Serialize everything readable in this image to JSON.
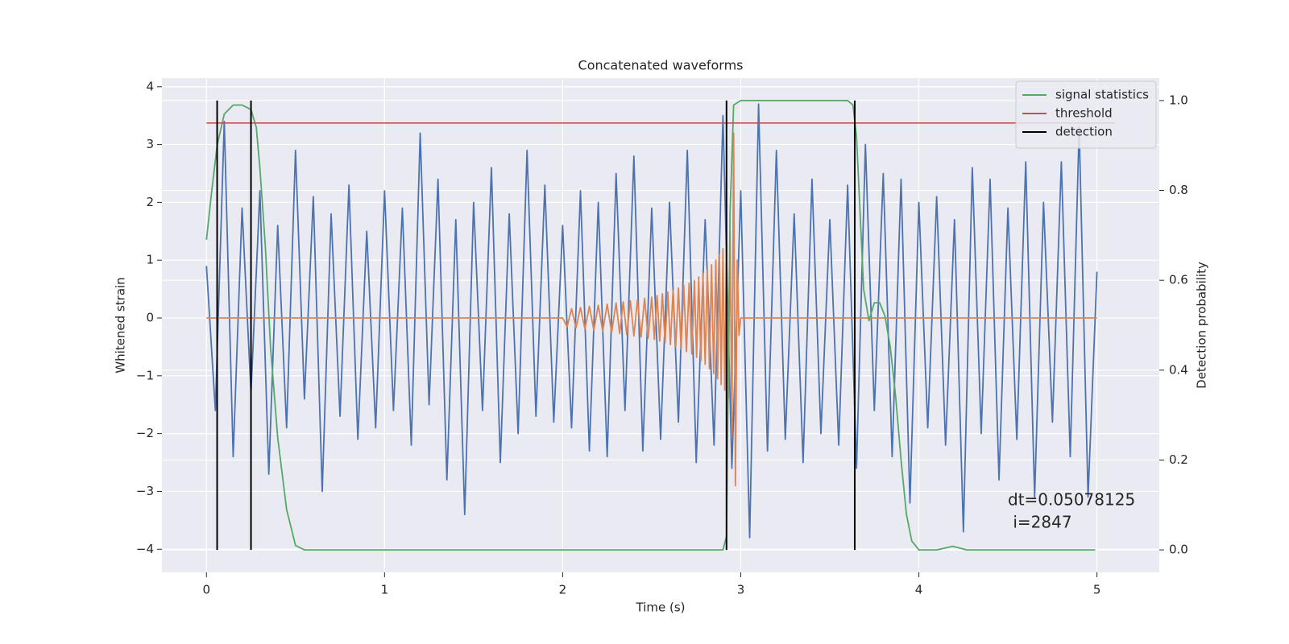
{
  "chart_data": {
    "type": "line",
    "title": "Concatenated waveforms",
    "xlabel": "Time (s)",
    "ylabel": "Whitened strain",
    "y2label": "Detection probability",
    "xlim": [
      -0.25,
      5.35
    ],
    "ylim": [
      -4.4,
      4.15
    ],
    "y2lim": [
      -0.05,
      1.05
    ],
    "xticks": [
      0,
      1,
      2,
      3,
      4,
      5
    ],
    "yticks": [
      {
        "value": -4,
        "label": "−4"
      },
      {
        "value": -3,
        "label": "−3"
      },
      {
        "value": -2,
        "label": "−2"
      },
      {
        "value": -1,
        "label": "−1"
      },
      0,
      1,
      2,
      3,
      4
    ],
    "y2ticks": [
      {
        "value": 0,
        "label": "0.0"
      },
      0.2,
      0.4,
      0.6,
      0.8,
      {
        "value": 1,
        "label": "1.0"
      }
    ],
    "grid": true,
    "legend": "upper right",
    "series": [
      {
        "color": "#4c72b0",
        "x": [
          0,
          0.05,
          0.1,
          0.15,
          0.2,
          0.25,
          0.3,
          0.35,
          0.4,
          0.45,
          0.5,
          0.55,
          0.6,
          0.65,
          0.7,
          0.75,
          0.8,
          0.85,
          0.9,
          0.95,
          1,
          1.05,
          1.1,
          1.15,
          1.2,
          1.25,
          1.3,
          1.35,
          1.4,
          1.45,
          1.5,
          1.55,
          1.6,
          1.65,
          1.7,
          1.75,
          1.8,
          1.85,
          1.9,
          1.95,
          2,
          2.05,
          2.1,
          2.15,
          2.2,
          2.25,
          2.3,
          2.35,
          2.4,
          2.45,
          2.5,
          2.55,
          2.6,
          2.65,
          2.7,
          2.75,
          2.8,
          2.85,
          2.9,
          2.95,
          3,
          3.05,
          3.1,
          3.15,
          3.2,
          3.25,
          3.3,
          3.35,
          3.4,
          3.45,
          3.5,
          3.55,
          3.6,
          3.65,
          3.7,
          3.75,
          3.8,
          3.85,
          3.9,
          3.95,
          4,
          4.05,
          4.1,
          4.15,
          4.2,
          4.25,
          4.3,
          4.35,
          4.4,
          4.45,
          4.5,
          4.55,
          4.6,
          4.65,
          4.7,
          4.75,
          4.8,
          4.85,
          4.9,
          4.95,
          5
        ],
        "values": [
          0.9,
          -1.6,
          3.4,
          -2.4,
          1.9,
          -1.3,
          2.2,
          -2.7,
          1.6,
          -1.9,
          2.9,
          -1.4,
          2.1,
          -3.0,
          1.8,
          -1.7,
          2.3,
          -2.1,
          1.5,
          -1.9,
          2.2,
          -1.6,
          1.9,
          -2.2,
          3.2,
          -1.5,
          2.4,
          -2.8,
          1.7,
          -3.4,
          2.0,
          -1.6,
          2.6,
          -2.5,
          1.8,
          -2.0,
          2.9,
          -1.7,
          2.3,
          -1.8,
          1.6,
          -1.9,
          2.2,
          -2.3,
          2.0,
          -2.4,
          2.5,
          -1.6,
          2.8,
          -2.3,
          1.9,
          -2.1,
          2.0,
          -1.8,
          2.9,
          -2.5,
          1.7,
          -2.2,
          3.5,
          -2.6,
          2.2,
          -3.8,
          3.7,
          -2.3,
          2.9,
          -2.1,
          1.8,
          -2.5,
          2.4,
          -2.0,
          1.7,
          -2.2,
          2.3,
          -2.6,
          3.0,
          -1.6,
          2.5,
          -2.4,
          2.4,
          -3.2,
          2.0,
          -1.9,
          2.1,
          -2.2,
          1.7,
          -3.7,
          2.6,
          -2.0,
          2.4,
          -2.8,
          1.9,
          -2.1,
          2.7,
          -3.1,
          2.0,
          -1.8,
          2.7,
          -2.4,
          3.3,
          -3.1,
          0.8
        ]
      },
      {
        "color": "#dd8452",
        "x": [
          0,
          2.0,
          2.025,
          2.05,
          2.075,
          2.1,
          2.125,
          2.15,
          2.175,
          2.2,
          2.225,
          2.25,
          2.275,
          2.3,
          2.32,
          2.34,
          2.36,
          2.38,
          2.4,
          2.42,
          2.44,
          2.46,
          2.48,
          2.5,
          2.515,
          2.53,
          2.545,
          2.56,
          2.575,
          2.59,
          2.605,
          2.62,
          2.635,
          2.65,
          2.665,
          2.68,
          2.695,
          2.71,
          2.725,
          2.74,
          2.752,
          2.764,
          2.776,
          2.788,
          2.8,
          2.812,
          2.824,
          2.836,
          2.848,
          2.86,
          2.87,
          2.88,
          2.89,
          2.9,
          2.91,
          2.92,
          2.93,
          2.94,
          2.95,
          2.96,
          2.97,
          2.98,
          2.99,
          3.0,
          5
        ],
        "values": [
          0,
          0,
          -0.15,
          0.16,
          -0.17,
          0.18,
          -0.19,
          0.2,
          -0.21,
          0.22,
          -0.23,
          0.24,
          -0.25,
          0.26,
          -0.27,
          0.28,
          -0.29,
          0.3,
          -0.31,
          0.32,
          -0.33,
          0.34,
          -0.35,
          0.36,
          -0.37,
          0.39,
          -0.4,
          0.42,
          -0.43,
          0.45,
          -0.46,
          0.48,
          -0.5,
          0.52,
          -0.54,
          0.56,
          -0.58,
          0.6,
          -0.62,
          0.65,
          -0.68,
          0.71,
          -0.74,
          0.77,
          -0.8,
          0.84,
          -0.88,
          0.92,
          -0.96,
          1.0,
          -1.05,
          1.1,
          -1.15,
          1.2,
          -1.25,
          1.3,
          -1.4,
          1.5,
          -2.0,
          3.2,
          -2.9,
          1.0,
          -0.3,
          0,
          0
        ]
      },
      {
        "name": "signal statistics",
        "color": "#55a868",
        "axis": "y2",
        "x": [
          0,
          0.03,
          0.06,
          0.1,
          0.15,
          0.2,
          0.25,
          0.28,
          0.3,
          0.33,
          0.36,
          0.4,
          0.45,
          0.5,
          0.55,
          1,
          2,
          2.9,
          2.92,
          2.94,
          2.96,
          3.0,
          3.5,
          3.6,
          3.63,
          3.65,
          3.67,
          3.69,
          3.72,
          3.75,
          3.78,
          3.81,
          3.84,
          3.87,
          3.9,
          3.93,
          3.96,
          4.0,
          4.1,
          4.19,
          4.27,
          4.5,
          4.99
        ],
        "values": [
          0.69,
          0.8,
          0.9,
          0.97,
          0.99,
          0.99,
          0.98,
          0.94,
          0.85,
          0.68,
          0.45,
          0.25,
          0.09,
          0.01,
          0,
          0,
          0,
          0,
          0.03,
          0.75,
          0.99,
          1.0,
          1.0,
          1.0,
          0.99,
          0.92,
          0.75,
          0.58,
          0.51,
          0.55,
          0.55,
          0.52,
          0.45,
          0.34,
          0.2,
          0.08,
          0.02,
          0,
          0,
          0.008,
          0,
          0,
          0
        ]
      }
    ],
    "threshold": {
      "name": "threshold",
      "color": "#c44e52",
      "axis": "y2",
      "value": 0.95,
      "x": [
        0,
        5.1
      ]
    },
    "detections": {
      "name": "detection",
      "color": "#000000",
      "axis": "y2",
      "x": [
        0.06,
        0.25,
        2.92,
        3.64
      ],
      "ymin": 0,
      "ymax": 1
    },
    "annotation": [
      "dt=0.05078125",
      " i=2847"
    ]
  }
}
